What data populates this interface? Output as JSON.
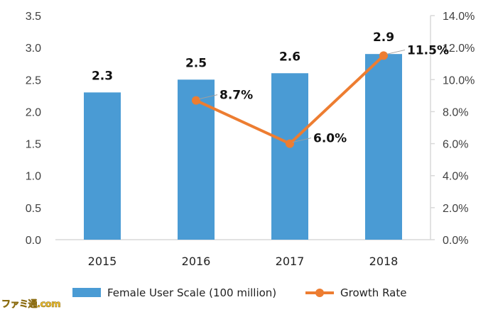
{
  "chart_data": {
    "type": "bar",
    "categories": [
      "2015",
      "2016",
      "2017",
      "2018"
    ],
    "series": [
      {
        "name": "Female User Scale (100 million)",
        "type": "bar",
        "axis": "left",
        "values": [
          2.3,
          2.5,
          2.6,
          2.9
        ],
        "value_labels": [
          "2.3",
          "2.5",
          "2.6",
          "2.9"
        ],
        "color": "#4a9bd4"
      },
      {
        "name": "Growth Rate",
        "type": "line",
        "axis": "right",
        "values": [
          null,
          8.7,
          6.0,
          11.5
        ],
        "value_labels": [
          "",
          "8.7%",
          "6.0%",
          "11.5%"
        ],
        "color": "#ed7d31"
      }
    ],
    "y_left": {
      "lim": [
        0,
        3.5
      ],
      "ticks": [
        "0.0",
        "0.5",
        "1.0",
        "1.5",
        "2.0",
        "2.5",
        "3.0",
        "3.5"
      ]
    },
    "y_right": {
      "lim": [
        0,
        14
      ],
      "ticks": [
        "0.0%",
        "2.0%",
        "4.0%",
        "6.0%",
        "8.0%",
        "10.0%",
        "12.0%",
        "14.0%"
      ]
    },
    "grid": false,
    "legend": "bottom"
  },
  "watermark": "ファミ通.com"
}
